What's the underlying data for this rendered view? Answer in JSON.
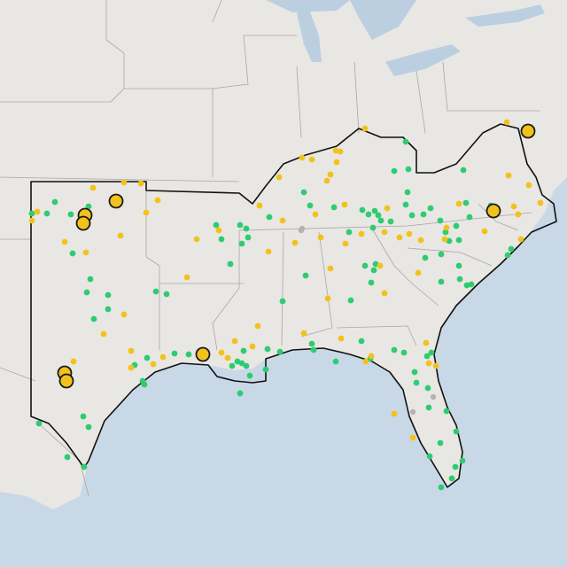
{
  "map": {
    "colors": {
      "land": "#e9e7e4",
      "water": "#c9d8e6",
      "lake": "#bccfe0",
      "state_border": "#a9a6a2",
      "region_outline": "#111111",
      "marker_green": "#2ecc71",
      "marker_yellow": "#f2c21b",
      "marker_gray": "#b3b3b3",
      "large_marker_stroke": "#1a1a1a"
    },
    "marker_types": [
      "green-dot",
      "yellow-dot",
      "gray-dot",
      "large-yellow-circle"
    ]
  }
}
